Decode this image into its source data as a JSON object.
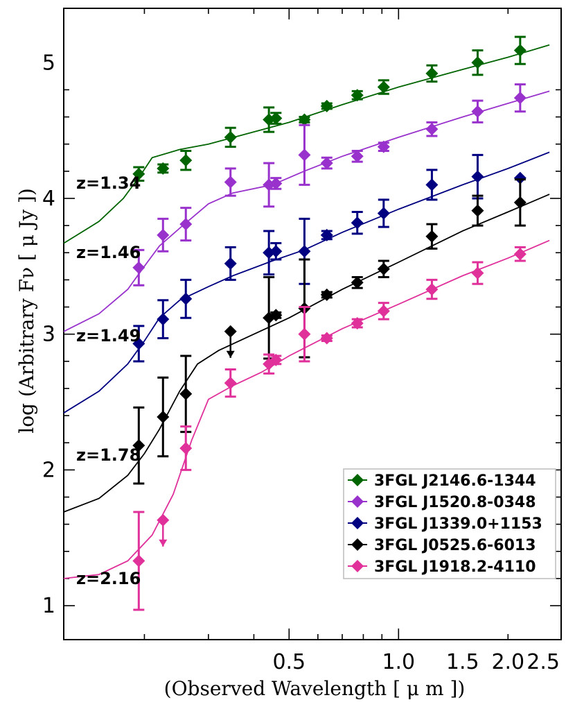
{
  "chart_data": {
    "type": "scatter",
    "xlabel": "(Observed Wavelength [ μ m ])",
    "ylabel": "log (Arbitrary Fν [ μ Jy ])",
    "xscale": "log",
    "xlim": [
      0.12,
      2.8
    ],
    "ylim": [
      0.75,
      5.4
    ],
    "x_ticks": [
      0.5,
      1.0,
      1.5,
      2.0,
      2.5
    ],
    "x_tick_labels": [
      "0.5",
      "1.0",
      "1.5",
      "2.0",
      "2.5"
    ],
    "y_ticks": [
      1,
      2,
      3,
      4,
      5
    ],
    "y_tick_labels": [
      "1",
      "2",
      "3",
      "4",
      "5"
    ],
    "legend_position": "bottom-right",
    "series": [
      {
        "name": "3FGL J2146.6-1344",
        "color": "#006400",
        "redshift_label": "z=1.34",
        "points": [
          {
            "x": 0.193,
            "y": 4.18,
            "err": 0.05
          },
          {
            "x": 0.225,
            "y": 4.22,
            "err": 0.03
          },
          {
            "x": 0.26,
            "y": 4.28,
            "err": 0.07
          },
          {
            "x": 0.345,
            "y": 4.45,
            "err": 0.07
          },
          {
            "x": 0.44,
            "y": 4.58,
            "err": 0.09
          },
          {
            "x": 0.46,
            "y": 4.59,
            "err": 0.04
          },
          {
            "x": 0.551,
            "y": 4.58,
            "err": 0.02
          },
          {
            "x": 0.635,
            "y": 4.68,
            "err": 0.02
          },
          {
            "x": 0.77,
            "y": 4.76,
            "err": 0.03
          },
          {
            "x": 0.91,
            "y": 4.82,
            "err": 0.05
          },
          {
            "x": 1.235,
            "y": 4.92,
            "err": 0.06
          },
          {
            "x": 1.65,
            "y": 5.0,
            "err": 0.09
          },
          {
            "x": 2.16,
            "y": 5.09,
            "err": 0.1
          }
        ],
        "model": [
          [
            0.12,
            3.67
          ],
          [
            0.15,
            3.83
          ],
          [
            0.175,
            4.0
          ],
          [
            0.195,
            4.17
          ],
          [
            0.21,
            4.3
          ],
          [
            0.25,
            4.36
          ],
          [
            0.3,
            4.4
          ],
          [
            0.4,
            4.49
          ],
          [
            0.5,
            4.56
          ],
          [
            0.7,
            4.69
          ],
          [
            1.0,
            4.82
          ],
          [
            1.5,
            4.95
          ],
          [
            2.0,
            5.04
          ],
          [
            2.6,
            5.13
          ]
        ],
        "model_y_at_min_x": 3.67
      },
      {
        "name": "3FGL J1520.8-0348",
        "color": "#9932CC",
        "redshift_label": "z=1.46",
        "points": [
          {
            "x": 0.193,
            "y": 3.49,
            "err": 0.13
          },
          {
            "x": 0.225,
            "y": 3.73,
            "err": 0.12
          },
          {
            "x": 0.26,
            "y": 3.81,
            "err": 0.12
          },
          {
            "x": 0.345,
            "y": 4.12,
            "err": 0.1
          },
          {
            "x": 0.44,
            "y": 4.1,
            "err": 0.16
          },
          {
            "x": 0.46,
            "y": 4.11,
            "err": 0.04
          },
          {
            "x": 0.551,
            "y": 4.32,
            "err": 0.22
          },
          {
            "x": 0.635,
            "y": 4.26,
            "err": 0.04
          },
          {
            "x": 0.77,
            "y": 4.31,
            "err": 0.04
          },
          {
            "x": 0.91,
            "y": 4.38,
            "err": 0.03
          },
          {
            "x": 1.235,
            "y": 4.51,
            "err": 0.05
          },
          {
            "x": 1.65,
            "y": 4.64,
            "err": 0.08
          },
          {
            "x": 2.16,
            "y": 4.74,
            "err": 0.1
          }
        ],
        "model": [
          [
            0.12,
            3.02
          ],
          [
            0.15,
            3.15
          ],
          [
            0.18,
            3.33
          ],
          [
            0.2,
            3.5
          ],
          [
            0.22,
            3.65
          ],
          [
            0.25,
            3.78
          ],
          [
            0.3,
            3.96
          ],
          [
            0.35,
            4.04
          ],
          [
            0.45,
            4.1
          ],
          [
            0.55,
            4.2
          ],
          [
            0.7,
            4.31
          ],
          [
            1.0,
            4.45
          ],
          [
            1.5,
            4.6
          ],
          [
            2.0,
            4.7
          ],
          [
            2.6,
            4.79
          ]
        ]
      },
      {
        "name": "3FGL J1339.0+1153",
        "color": "#000080",
        "redshift_label": "z=1.49",
        "points": [
          {
            "x": 0.193,
            "y": 2.93,
            "err": 0.13
          },
          {
            "x": 0.225,
            "y": 3.11,
            "err": 0.14
          },
          {
            "x": 0.26,
            "y": 3.26,
            "err": 0.14
          },
          {
            "x": 0.345,
            "y": 3.52,
            "err": 0.12
          },
          {
            "x": 0.44,
            "y": 3.6,
            "err": 0.16
          },
          {
            "x": 0.46,
            "y": 3.61,
            "err": 0.06
          },
          {
            "x": 0.551,
            "y": 3.61,
            "err": 0.24
          },
          {
            "x": 0.635,
            "y": 3.73,
            "err": 0.03
          },
          {
            "x": 0.77,
            "y": 3.82,
            "err": 0.08
          },
          {
            "x": 0.91,
            "y": 3.89,
            "err": 0.1
          },
          {
            "x": 1.235,
            "y": 4.1,
            "err": 0.11
          },
          {
            "x": 1.65,
            "y": 4.16,
            "err": 0.16
          },
          {
            "x": 2.16,
            "y": 4.15,
            "err": 0.0
          }
        ],
        "model": [
          [
            0.12,
            2.42
          ],
          [
            0.15,
            2.58
          ],
          [
            0.18,
            2.78
          ],
          [
            0.2,
            2.95
          ],
          [
            0.22,
            3.12
          ],
          [
            0.25,
            3.25
          ],
          [
            0.3,
            3.35
          ],
          [
            0.35,
            3.43
          ],
          [
            0.45,
            3.54
          ],
          [
            0.55,
            3.62
          ],
          [
            0.7,
            3.75
          ],
          [
            1.0,
            3.92
          ],
          [
            1.5,
            4.1
          ],
          [
            2.0,
            4.22
          ],
          [
            2.6,
            4.34
          ]
        ]
      },
      {
        "name": "3FGL J0525.6-6013",
        "color": "#000000",
        "redshift_label": "z=1.78",
        "points": [
          {
            "x": 0.193,
            "y": 2.18,
            "err": 0.28
          },
          {
            "x": 0.225,
            "y": 2.39,
            "err": 0.29
          },
          {
            "x": 0.26,
            "y": 2.56,
            "err": 0.28
          },
          {
            "x": 0.345,
            "y": 3.02,
            "err": 0.0,
            "upper_limit": true
          },
          {
            "x": 0.44,
            "y": 3.12,
            "err": 0.3
          },
          {
            "x": 0.46,
            "y": 3.14,
            "err": 0.02
          },
          {
            "x": 0.551,
            "y": 3.19,
            "err": 0.36
          },
          {
            "x": 0.635,
            "y": 3.29,
            "err": 0.02
          },
          {
            "x": 0.77,
            "y": 3.38,
            "err": 0.04
          },
          {
            "x": 0.91,
            "y": 3.48,
            "err": 0.06
          },
          {
            "x": 1.235,
            "y": 3.72,
            "err": 0.09
          },
          {
            "x": 1.65,
            "y": 3.91,
            "err": 0.11
          },
          {
            "x": 2.16,
            "y": 3.97,
            "err": 0.17
          }
        ],
        "model": [
          [
            0.12,
            1.69
          ],
          [
            0.15,
            1.79
          ],
          [
            0.18,
            1.96
          ],
          [
            0.2,
            2.12
          ],
          [
            0.22,
            2.3
          ],
          [
            0.25,
            2.58
          ],
          [
            0.28,
            2.78
          ],
          [
            0.32,
            2.88
          ],
          [
            0.4,
            3.0
          ],
          [
            0.5,
            3.12
          ],
          [
            0.7,
            3.33
          ],
          [
            1.0,
            3.53
          ],
          [
            1.5,
            3.76
          ],
          [
            2.0,
            3.9
          ],
          [
            2.6,
            4.03
          ]
        ]
      },
      {
        "name": "3FGL J1918.2-4110",
        "color": "#E0309A",
        "redshift_label": "z=2.16",
        "points": [
          {
            "x": 0.193,
            "y": 1.33,
            "err": 0.36
          },
          {
            "x": 0.225,
            "y": 1.63,
            "err": 0.0,
            "upper_limit": true
          },
          {
            "x": 0.26,
            "y": 2.16,
            "err": 0.16
          },
          {
            "x": 0.345,
            "y": 2.64,
            "err": 0.1
          },
          {
            "x": 0.44,
            "y": 2.78,
            "err": 0.07
          },
          {
            "x": 0.46,
            "y": 2.81,
            "err": 0.03
          },
          {
            "x": 0.551,
            "y": 3.0,
            "err": 0.2
          },
          {
            "x": 0.635,
            "y": 2.97,
            "err": 0.02
          },
          {
            "x": 0.77,
            "y": 3.08,
            "err": 0.03
          },
          {
            "x": 0.91,
            "y": 3.17,
            "err": 0.06
          },
          {
            "x": 1.235,
            "y": 3.33,
            "err": 0.07
          },
          {
            "x": 1.65,
            "y": 3.45,
            "err": 0.08
          },
          {
            "x": 2.16,
            "y": 3.59,
            "err": 0.05
          }
        ],
        "model": [
          [
            0.12,
            1.2
          ],
          [
            0.15,
            1.23
          ],
          [
            0.18,
            1.33
          ],
          [
            0.21,
            1.52
          ],
          [
            0.24,
            1.82
          ],
          [
            0.27,
            2.22
          ],
          [
            0.3,
            2.52
          ],
          [
            0.35,
            2.62
          ],
          [
            0.42,
            2.72
          ],
          [
            0.5,
            2.84
          ],
          [
            0.7,
            3.04
          ],
          [
            1.0,
            3.22
          ],
          [
            1.5,
            3.43
          ],
          [
            2.0,
            3.56
          ],
          [
            2.6,
            3.69
          ]
        ]
      }
    ]
  }
}
